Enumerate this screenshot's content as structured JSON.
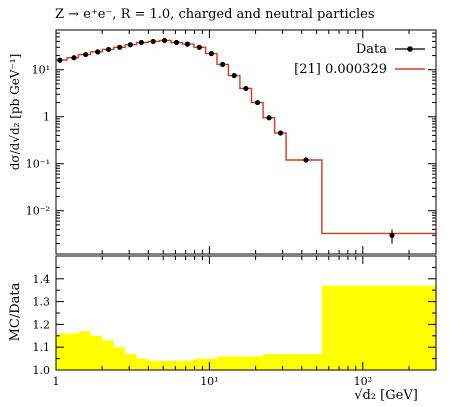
{
  "chart_data": [
    {
      "type": "line",
      "title": "Z → e⁺e⁻, R = 1.0, charged and neutral particles",
      "xlabel": "√d₂ [GeV]",
      "ylabel": "dσ/d√d₂ [pb GeV⁻¹]",
      "xscale": "log",
      "yscale": "log",
      "xlim": [
        1,
        300
      ],
      "ylim": [
        0.0012,
        70
      ],
      "x_tick_labels": [
        "1",
        "10¹",
        "10²"
      ],
      "y_tick_labels": [
        "10⁻²",
        "10⁻¹",
        "1",
        "10¹"
      ],
      "legend_position": "top-right",
      "legend": [
        {
          "label": "Data"
        },
        {
          "label": "[21] 0.000329"
        }
      ],
      "series": [
        {
          "name": "Data",
          "color": "#000000",
          "points": [
            {
              "x": 1.06,
              "y": 16,
              "yerr": 2.0
            },
            {
              "x": 1.31,
              "y": 18,
              "yerr": 2.0
            },
            {
              "x": 1.56,
              "y": 21,
              "yerr": 2.0
            },
            {
              "x": 1.87,
              "y": 24,
              "yerr": 2.0
            },
            {
              "x": 2.2,
              "y": 27
            },
            {
              "x": 2.6,
              "y": 30
            },
            {
              "x": 3.05,
              "y": 34
            },
            {
              "x": 3.6,
              "y": 38
            },
            {
              "x": 4.3,
              "y": 40
            },
            {
              "x": 5.1,
              "y": 42
            },
            {
              "x": 6.1,
              "y": 38
            },
            {
              "x": 7.2,
              "y": 35
            },
            {
              "x": 8.6,
              "y": 30
            },
            {
              "x": 10.3,
              "y": 22
            },
            {
              "x": 12.2,
              "y": 13
            },
            {
              "x": 14.5,
              "y": 7.5
            },
            {
              "x": 17.3,
              "y": 4.0
            },
            {
              "x": 20.6,
              "y": 2.0
            },
            {
              "x": 24.5,
              "y": 0.95
            },
            {
              "x": 29.1,
              "y": 0.45
            },
            {
              "x": 42.6,
              "y": 0.12
            },
            {
              "x": 155,
              "y": 0.003,
              "yerr": 0.001
            }
          ]
        },
        {
          "name": "[21] 0.000329",
          "color": "#d9381e",
          "bin_edges": [
            1,
            1.18,
            1.4,
            1.68,
            2.0,
            2.38,
            2.82,
            3.35,
            3.98,
            4.73,
            5.62,
            6.68,
            7.94,
            9.44,
            11.2,
            13.3,
            15.8,
            18.8,
            22.4,
            26.6,
            31.6,
            54.1,
            300
          ],
          "values": [
            16,
            18,
            21,
            24,
            27,
            30,
            34,
            38,
            40,
            42,
            38,
            35,
            30,
            22,
            13,
            7.5,
            4.0,
            2.0,
            0.95,
            0.45,
            0.12,
            0.0033
          ]
        }
      ]
    },
    {
      "type": "area",
      "ylabel": "MC/Data",
      "xlabel": "√d₂ [GeV]",
      "xscale": "log",
      "xlim": [
        1,
        300
      ],
      "ylim": [
        1.0,
        1.5
      ],
      "y_tick_labels": [
        "1.0",
        "1.1",
        "1.2",
        "1.3",
        "1.4"
      ],
      "color": "#ffff00",
      "bin_edges": [
        1,
        1.18,
        1.4,
        1.68,
        2.0,
        2.38,
        2.82,
        3.35,
        3.98,
        4.73,
        5.62,
        6.68,
        7.94,
        9.44,
        11.2,
        13.3,
        15.8,
        18.8,
        22.4,
        26.6,
        31.6,
        54.1,
        300
      ],
      "lower": [
        1,
        1,
        1,
        1,
        1,
        1,
        1,
        1,
        1,
        1,
        1,
        1,
        1,
        1,
        1,
        1,
        1,
        1,
        1,
        1,
        1,
        1
      ],
      "upper": [
        1.16,
        1.16,
        1.17,
        1.15,
        1.13,
        1.1,
        1.07,
        1.05,
        1.04,
        1.04,
        1.04,
        1.04,
        1.05,
        1.05,
        1.06,
        1.06,
        1.06,
        1.06,
        1.07,
        1.07,
        1.07,
        1.37
      ]
    }
  ]
}
